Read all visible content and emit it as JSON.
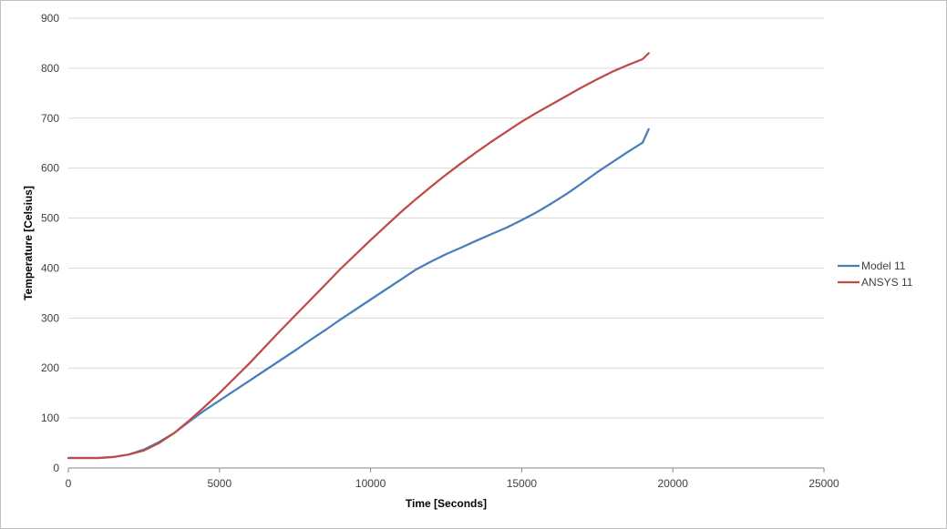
{
  "chart_data": {
    "type": "line",
    "title": "",
    "xlabel": "Time [Seconds]",
    "ylabel": "Temperature [Celsius]",
    "xlim": [
      0,
      25000
    ],
    "ylim": [
      0,
      900
    ],
    "xticks": [
      0,
      5000,
      10000,
      15000,
      20000,
      25000
    ],
    "yticks": [
      0,
      100,
      200,
      300,
      400,
      500,
      600,
      700,
      800,
      900
    ],
    "grid": "horizontal",
    "legend_position": "right",
    "x": [
      0,
      500,
      1000,
      1500,
      2000,
      2500,
      3000,
      3500,
      4000,
      4500,
      5000,
      5500,
      6000,
      6500,
      7000,
      7500,
      8000,
      8500,
      9000,
      9500,
      10000,
      10500,
      11000,
      11500,
      12000,
      12500,
      13000,
      13500,
      14000,
      14500,
      15000,
      15500,
      16000,
      16500,
      17000,
      17500,
      18000,
      18500,
      19000,
      19200
    ],
    "series": [
      {
        "name": "Model 11",
        "color": "#4a7ebb",
        "values": [
          20,
          20,
          20,
          22,
          27,
          37,
          52,
          70,
          93,
          115,
          135,
          155,
          175,
          195,
          215,
          235,
          256,
          276,
          297,
          317,
          337,
          357,
          377,
          397,
          413,
          428,
          441,
          455,
          468,
          481,
          496,
          512,
          530,
          549,
          570,
          592,
          612,
          632,
          651,
          678
        ]
      },
      {
        "name": "ANSYS 11",
        "color": "#be4b48",
        "values": [
          20,
          20,
          20,
          22,
          27,
          35,
          50,
          70,
          95,
          122,
          150,
          180,
          210,
          242,
          274,
          305,
          336,
          367,
          398,
          427,
          456,
          484,
          512,
          538,
          563,
          587,
          610,
          632,
          653,
          673,
          693,
          711,
          728,
          745,
          762,
          778,
          793,
          806,
          818,
          830
        ]
      }
    ]
  }
}
